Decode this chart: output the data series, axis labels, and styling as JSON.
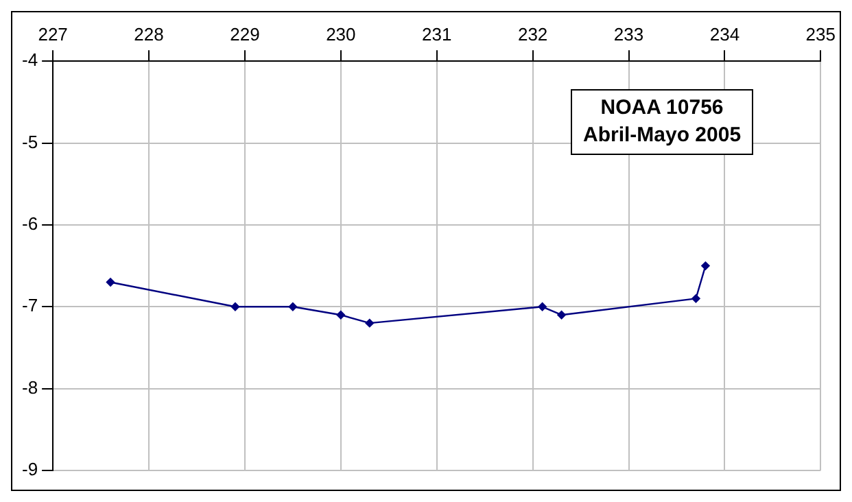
{
  "chart_data": {
    "type": "line",
    "x": [
      227.6,
      228.9,
      229.5,
      230.0,
      230.3,
      232.1,
      232.3,
      233.7,
      233.8
    ],
    "series": [
      {
        "color": "#000080",
        "values": [
          -6.7,
          -7.0,
          -7.0,
          -7.1,
          -7.2,
          -7.0,
          -7.1,
          -6.9,
          -6.5
        ]
      }
    ],
    "xlim": [
      227,
      235
    ],
    "xticks": [
      227,
      228,
      229,
      230,
      231,
      232,
      233,
      234,
      235
    ],
    "ylim": [
      -9,
      -4
    ],
    "yticks": [
      -9,
      -8,
      -7,
      -6,
      -5,
      -4
    ],
    "grid": true,
    "legend": false,
    "marker": "diamond",
    "line_style": "solid",
    "annotations": [
      "NOAA 10756\nAbril-Mayo 2005"
    ]
  }
}
